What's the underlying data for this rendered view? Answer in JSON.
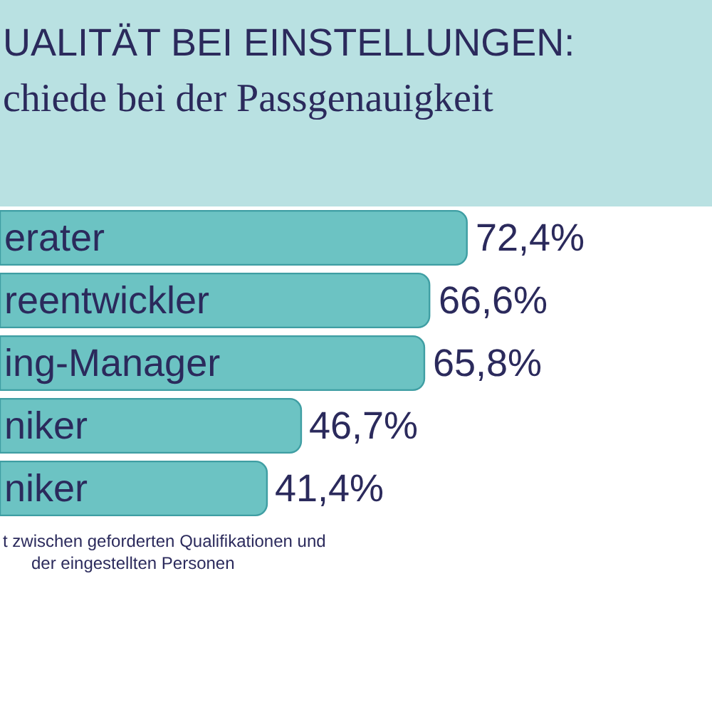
{
  "chart_data": {
    "type": "bar",
    "orientation": "horizontal",
    "title": "UALITÄT BEI EINSTELLUNGEN:",
    "subtitle": "chiede bei der Passgenauigkeit",
    "categories": [
      "erater",
      "reentwickler",
      "ing-Manager",
      "niker",
      "niker"
    ],
    "values": [
      72.4,
      66.6,
      65.8,
      46.7,
      41.4
    ],
    "value_labels": [
      "72,4%",
      "66,6%",
      "65,8%",
      "46,7%",
      "41,4%"
    ],
    "color": "#6cc3c3",
    "tick_labels": false,
    "legend": false,
    "annotations": [
      "t zwischen geforderten Qualifikationen und\n      der eingestellten Personen"
    ]
  }
}
